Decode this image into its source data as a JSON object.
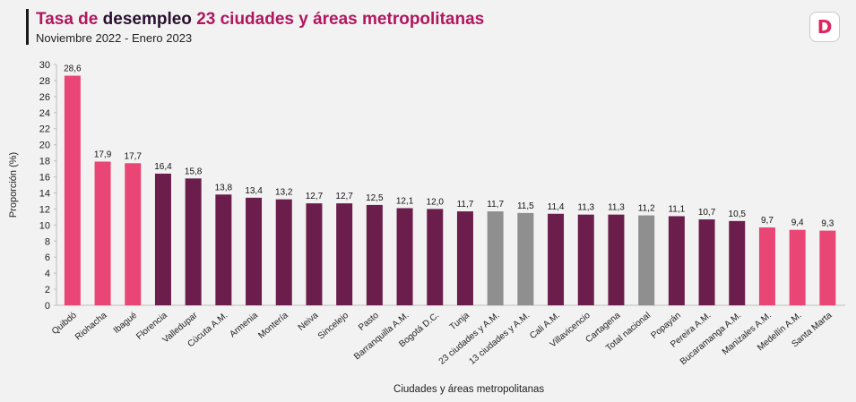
{
  "header": {
    "title_part1": "Tasa de ",
    "title_part2": "desempleo ",
    "title_part3": "23 ciudades y áreas metropolitanas",
    "subtitle": "Noviembre 2022 - Enero 2023",
    "logo_letter": "D"
  },
  "colors": {
    "highlight": "#ea4675",
    "standard": "#6b1d4b",
    "aggregate": "#8f8f8f",
    "title_accent": "#b0175f"
  },
  "chart_data": {
    "type": "bar",
    "xlabel": "Ciudades y áreas metropolitanas",
    "ylabel": "Proporción (%)",
    "ylim": [
      0,
      30
    ],
    "yticks": [
      0,
      2,
      4,
      6,
      8,
      10,
      12,
      14,
      16,
      18,
      20,
      22,
      24,
      26,
      28,
      30
    ],
    "grid": false,
    "categories": [
      "Quibdó",
      "Riohacha",
      "Ibagué",
      "Florencia",
      "Valledupar",
      "Cúcuta A.M.",
      "Armenia",
      "Montería",
      "Neiva",
      "Sincelejo",
      "Pasto",
      "Barranquilla A.M.",
      "Bogotá D.C.",
      "Tunja",
      "23 ciudades y A.M.",
      "13 ciudades y A.M.",
      "Cali A.M.",
      "Villavicencio",
      "Cartagena",
      "Total nacional",
      "Popayán",
      "Pereira A.M.",
      "Bucaramanga A.M.",
      "Manizales A.M.",
      "Medellín A.M.",
      "Santa Marta"
    ],
    "values": [
      28.6,
      17.9,
      17.7,
      16.4,
      15.8,
      13.8,
      13.4,
      13.2,
      12.7,
      12.7,
      12.5,
      12.1,
      12.0,
      11.7,
      11.7,
      11.5,
      11.4,
      11.3,
      11.3,
      11.2,
      11.1,
      10.7,
      10.5,
      9.7,
      9.4,
      9.3
    ],
    "value_labels": [
      "28,6",
      "17,9",
      "17,7",
      "16,4",
      "15,8",
      "13,8",
      "13,4",
      "13,2",
      "12,7",
      "12,7",
      "12,5",
      "12,1",
      "12,0",
      "11,7",
      "11,7",
      "11,5",
      "11,4",
      "11,3",
      "11,3",
      "11,2",
      "11,1",
      "10,7",
      "10,5",
      "9,7",
      "9,4",
      "9,3"
    ],
    "bar_groups": [
      "highlight",
      "highlight",
      "highlight",
      "standard",
      "standard",
      "standard",
      "standard",
      "standard",
      "standard",
      "standard",
      "standard",
      "standard",
      "standard",
      "standard",
      "aggregate",
      "aggregate",
      "standard",
      "standard",
      "standard",
      "aggregate",
      "standard",
      "standard",
      "standard",
      "highlight",
      "highlight",
      "highlight"
    ]
  }
}
